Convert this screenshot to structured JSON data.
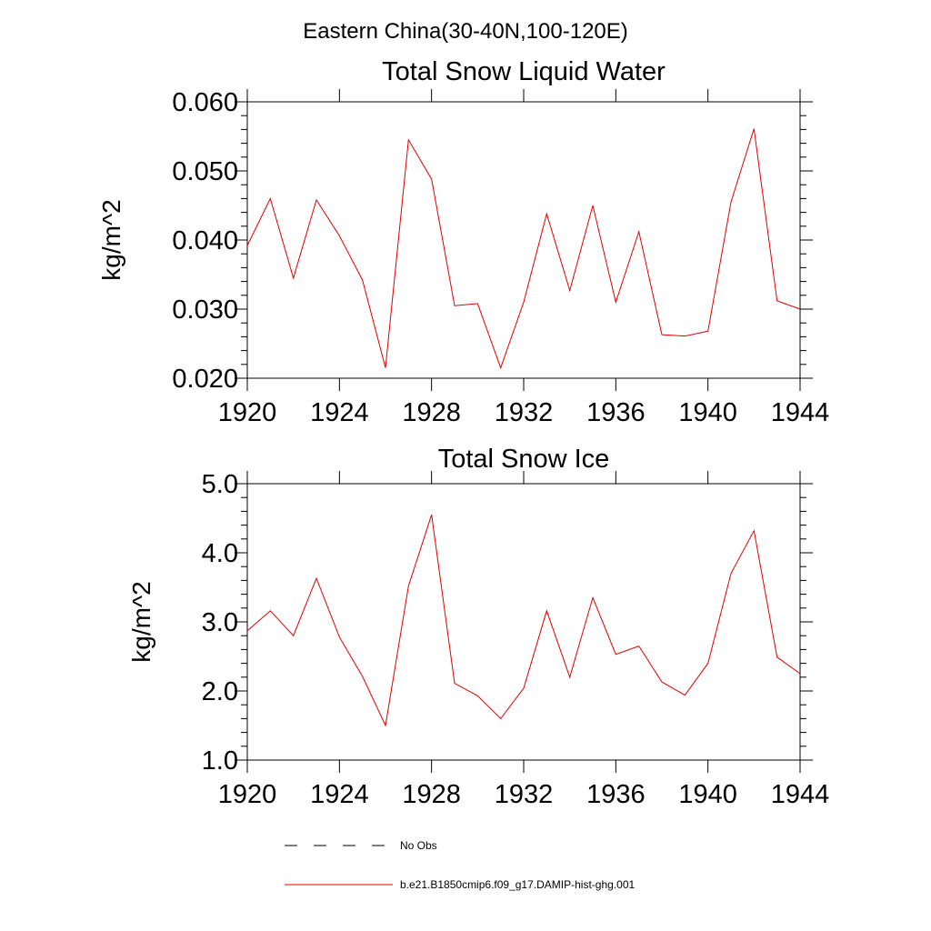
{
  "figure": {
    "suptitle": "Eastern China(30-40N,100-120E)"
  },
  "legend": {
    "entries": [
      {
        "name": "No Obs",
        "style": "dashed",
        "color": "#000000"
      },
      {
        "name": "b.e21.B1850cmip6.f09_g17.DAMIP-hist-ghg.001",
        "style": "solid",
        "color": "#e00000"
      }
    ]
  },
  "chart_data": [
    {
      "type": "line",
      "title": "Total Snow Liquid Water",
      "ylabel": "kg/m^2",
      "xlim": [
        1920,
        1944
      ],
      "ylim": [
        0.02,
        0.06
      ],
      "xticks": [
        1920,
        1924,
        1928,
        1932,
        1936,
        1940,
        1944
      ],
      "xtick_labels": [
        "1920",
        "1924",
        "1928",
        "1932",
        "1936",
        "1940",
        "1944"
      ],
      "yticks": [
        0.02,
        0.03,
        0.04,
        0.05,
        0.06
      ],
      "ytick_labels": [
        "0.020",
        "0.030",
        "0.040",
        "0.050",
        "0.060"
      ],
      "x": [
        1920,
        1921,
        1922,
        1923,
        1924,
        1925,
        1926,
        1927,
        1928,
        1929,
        1930,
        1931,
        1932,
        1933,
        1934,
        1935,
        1936,
        1937,
        1938,
        1939,
        1940,
        1941,
        1942,
        1943,
        1944
      ],
      "series": [
        {
          "name": "b.e21.B1850cmip6.f09_g17.DAMIP-hist-ghg.001",
          "color": "#e00000",
          "values": [
            0.0392,
            0.046,
            0.0345,
            0.0458,
            0.0406,
            0.0342,
            0.0215,
            0.0545,
            0.0488,
            0.0305,
            0.0308,
            0.0215,
            0.031,
            0.0438,
            0.0327,
            0.045,
            0.031,
            0.0412,
            0.0263,
            0.0261,
            0.0268,
            0.0455,
            0.0561,
            0.0312,
            0.03
          ]
        }
      ]
    },
    {
      "type": "line",
      "title": "Total Snow Ice",
      "ylabel": "kg/m^2",
      "xlim": [
        1920,
        1944
      ],
      "ylim": [
        1.0,
        5.0
      ],
      "xticks": [
        1920,
        1924,
        1928,
        1932,
        1936,
        1940,
        1944
      ],
      "xtick_labels": [
        "1920",
        "1924",
        "1928",
        "1932",
        "1936",
        "1940",
        "1944"
      ],
      "yticks": [
        1.0,
        2.0,
        3.0,
        4.0,
        5.0
      ],
      "ytick_labels": [
        "1.0",
        "2.0",
        "3.0",
        "4.0",
        "5.0"
      ],
      "x": [
        1920,
        1921,
        1922,
        1923,
        1924,
        1925,
        1926,
        1927,
        1928,
        1929,
        1930,
        1931,
        1932,
        1933,
        1934,
        1935,
        1936,
        1937,
        1938,
        1939,
        1940,
        1941,
        1942,
        1943,
        1944
      ],
      "series": [
        {
          "name": "b.e21.B1850cmip6.f09_g17.DAMIP-hist-ghg.001",
          "color": "#e00000",
          "values": [
            2.87,
            3.16,
            2.8,
            3.63,
            2.78,
            2.21,
            1.5,
            3.52,
            4.55,
            2.11,
            1.93,
            1.6,
            2.04,
            3.16,
            2.2,
            3.35,
            2.53,
            2.65,
            2.13,
            1.94,
            2.4,
            3.7,
            4.32,
            2.49,
            2.25
          ]
        }
      ]
    }
  ]
}
